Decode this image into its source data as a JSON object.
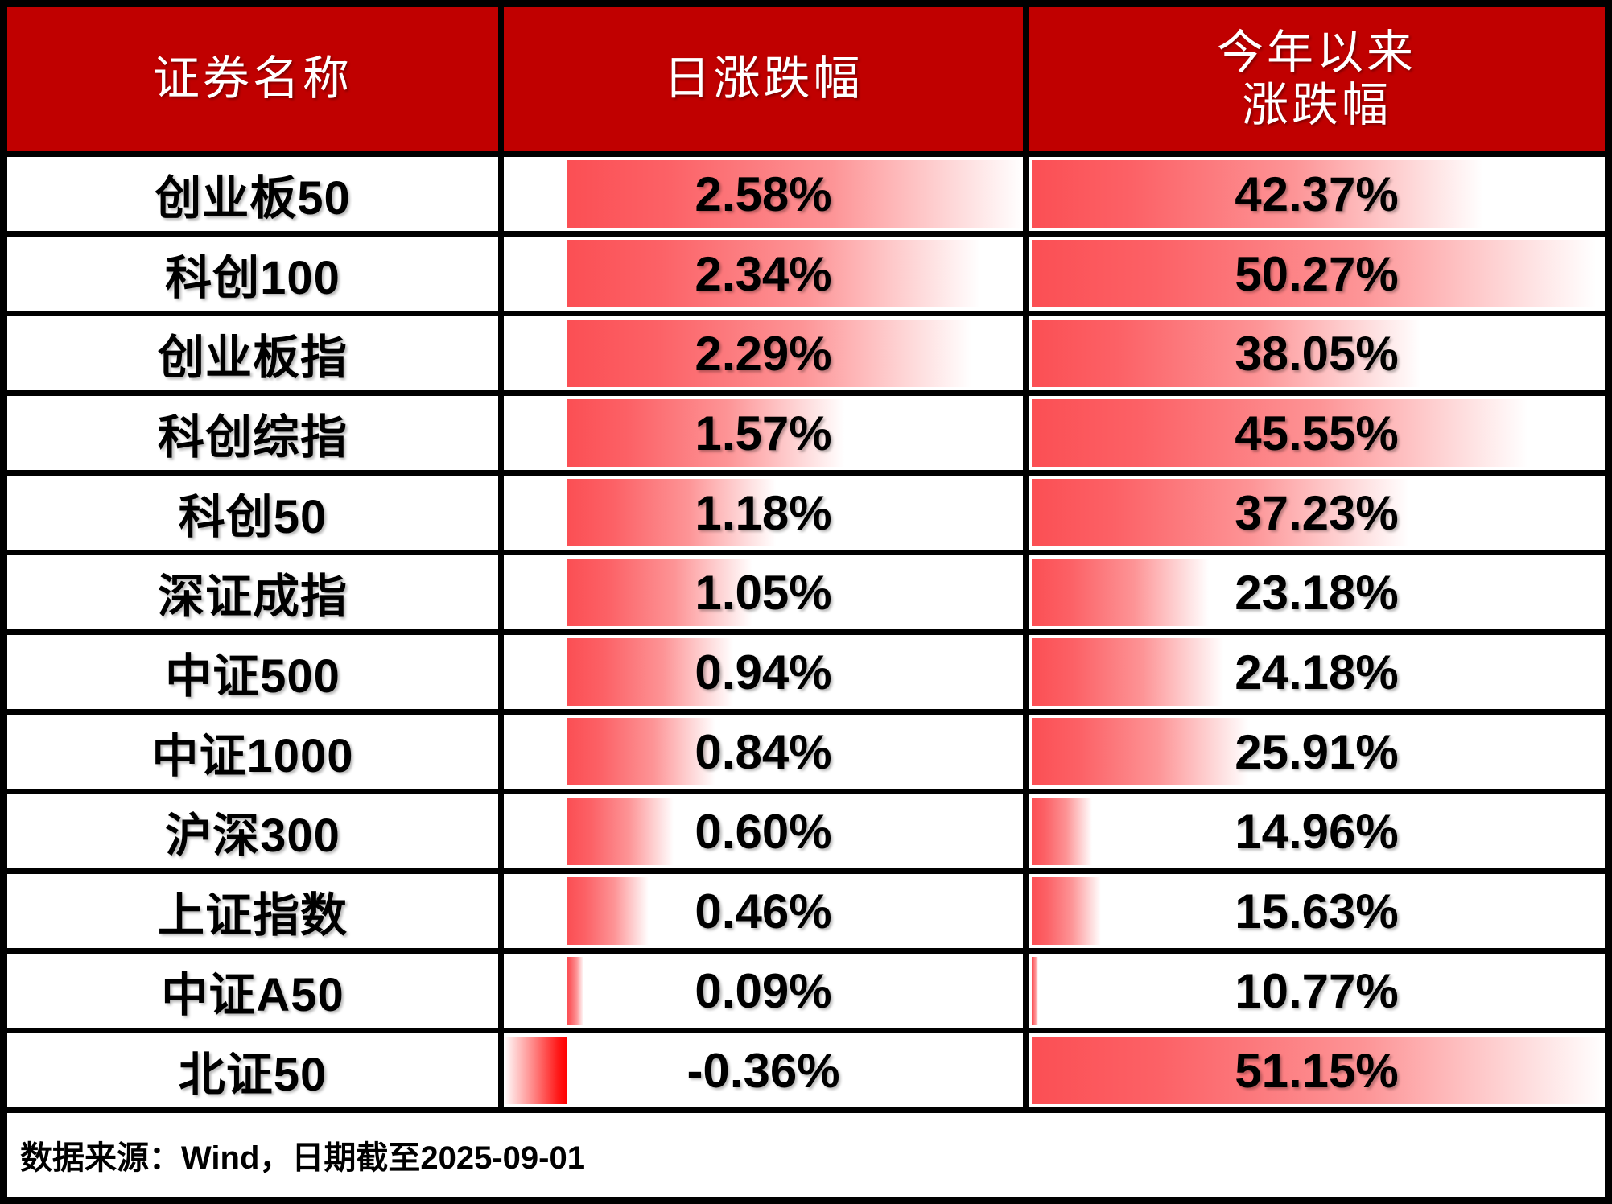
{
  "table": {
    "headers": {
      "name": "证券名称",
      "daily": "日涨跌幅",
      "ytd_line1": "今年以来",
      "ytd_line2": "涨跌幅"
    },
    "rows": [
      {
        "name": "创业板50",
        "daily": "2.58%",
        "ytd": "42.37%",
        "daily_bar": {
          "left_pct": 12.24,
          "width_pct": 87.76,
          "negative": false
        },
        "ytd_bar": {
          "left_pct": 0.6,
          "width_pct": 78.26
        }
      },
      {
        "name": "科创100",
        "daily": "2.34%",
        "ytd": "50.27%",
        "daily_bar": {
          "left_pct": 12.24,
          "width_pct": 79.59,
          "negative": false
        },
        "ytd_bar": {
          "left_pct": 0.6,
          "width_pct": 97.82
        }
      },
      {
        "name": "创业板指",
        "daily": "2.29%",
        "ytd": "38.05%",
        "daily_bar": {
          "left_pct": 12.24,
          "width_pct": 77.89,
          "negative": false
        },
        "ytd_bar": {
          "left_pct": 0.6,
          "width_pct": 67.56
        }
      },
      {
        "name": "科创综指",
        "daily": "1.57%",
        "ytd": "45.55%",
        "daily_bar": {
          "left_pct": 12.24,
          "width_pct": 53.4,
          "negative": false
        },
        "ytd_bar": {
          "left_pct": 0.6,
          "width_pct": 86.13
        }
      },
      {
        "name": "科创50",
        "daily": "1.18%",
        "ytd": "37.23%",
        "daily_bar": {
          "left_pct": 12.24,
          "width_pct": 40.14,
          "negative": false
        },
        "ytd_bar": {
          "left_pct": 0.6,
          "width_pct": 65.53
        }
      },
      {
        "name": "深证成指",
        "daily": "1.05%",
        "ytd": "23.18%",
        "daily_bar": {
          "left_pct": 12.24,
          "width_pct": 35.71,
          "negative": false
        },
        "ytd_bar": {
          "left_pct": 0.6,
          "width_pct": 30.73
        }
      },
      {
        "name": "中证500",
        "daily": "0.94%",
        "ytd": "24.18%",
        "daily_bar": {
          "left_pct": 12.24,
          "width_pct": 31.97,
          "negative": false
        },
        "ytd_bar": {
          "left_pct": 0.6,
          "width_pct": 33.21
        }
      },
      {
        "name": "中证1000",
        "daily": "0.84%",
        "ytd": "25.91%",
        "daily_bar": {
          "left_pct": 12.24,
          "width_pct": 28.57,
          "negative": false
        },
        "ytd_bar": {
          "left_pct": 0.6,
          "width_pct": 37.49
        }
      },
      {
        "name": "沪深300",
        "daily": "0.60%",
        "ytd": "14.96%",
        "daily_bar": {
          "left_pct": 12.24,
          "width_pct": 20.41,
          "negative": false
        },
        "ytd_bar": {
          "left_pct": 0.6,
          "width_pct": 10.38
        }
      },
      {
        "name": "上证指数",
        "daily": "0.46%",
        "ytd": "15.63%",
        "daily_bar": {
          "left_pct": 12.24,
          "width_pct": 15.65,
          "negative": false
        },
        "ytd_bar": {
          "left_pct": 0.6,
          "width_pct": 12.04
        }
      },
      {
        "name": "中证A50",
        "daily": "0.09%",
        "ytd": "10.77%",
        "daily_bar": {
          "left_pct": 12.24,
          "width_pct": 3.06,
          "negative": false
        },
        "ytd_bar": {
          "left_pct": 0.6,
          "width_pct": 1.1
        }
      },
      {
        "name": "北证50",
        "daily": "-0.36%",
        "ytd": "51.15%",
        "daily_bar": {
          "left_pct": 0,
          "width_pct": 12.24,
          "negative": true
        },
        "ytd_bar": {
          "left_pct": 0.6,
          "width_pct": 99.4
        }
      }
    ],
    "footer": "数据来源：Wind，日期截至2025-09-01"
  },
  "colors": {
    "header_bg": "#c00000",
    "header_text": "#ffffff",
    "positive_bar_red": "#fb4f54",
    "negative_bar_red": "#ff0000",
    "grid_border": "#000000",
    "cell_bg": "#ffffff",
    "value_text": "#000000"
  },
  "chart_data": {
    "type": "table",
    "title": "",
    "columns": [
      "证券名称",
      "日涨跌幅",
      "今年以来涨跌幅"
    ],
    "rows": [
      [
        "创业板50",
        2.58,
        42.37
      ],
      [
        "科创100",
        2.34,
        50.27
      ],
      [
        "创业板指",
        2.29,
        38.05
      ],
      [
        "科创综指",
        1.57,
        45.55
      ],
      [
        "科创50",
        1.18,
        37.23
      ],
      [
        "深证成指",
        1.05,
        23.18
      ],
      [
        "中证500",
        0.94,
        24.18
      ],
      [
        "中证1000",
        0.84,
        25.91
      ],
      [
        "沪深300",
        0.6,
        14.96
      ],
      [
        "上证指数",
        0.46,
        15.63
      ],
      [
        "中证A50",
        0.09,
        10.77
      ],
      [
        "北证50",
        -0.36,
        51.15
      ]
    ],
    "databar_scales": {
      "daily_change": {
        "min": -0.36,
        "max": 2.58,
        "zero_axis_fraction": 0.1224
      },
      "ytd_change": {
        "min": 10.77,
        "max": 51.15
      }
    },
    "source_note": "数据来源：Wind，日期截至2025-09-01"
  }
}
